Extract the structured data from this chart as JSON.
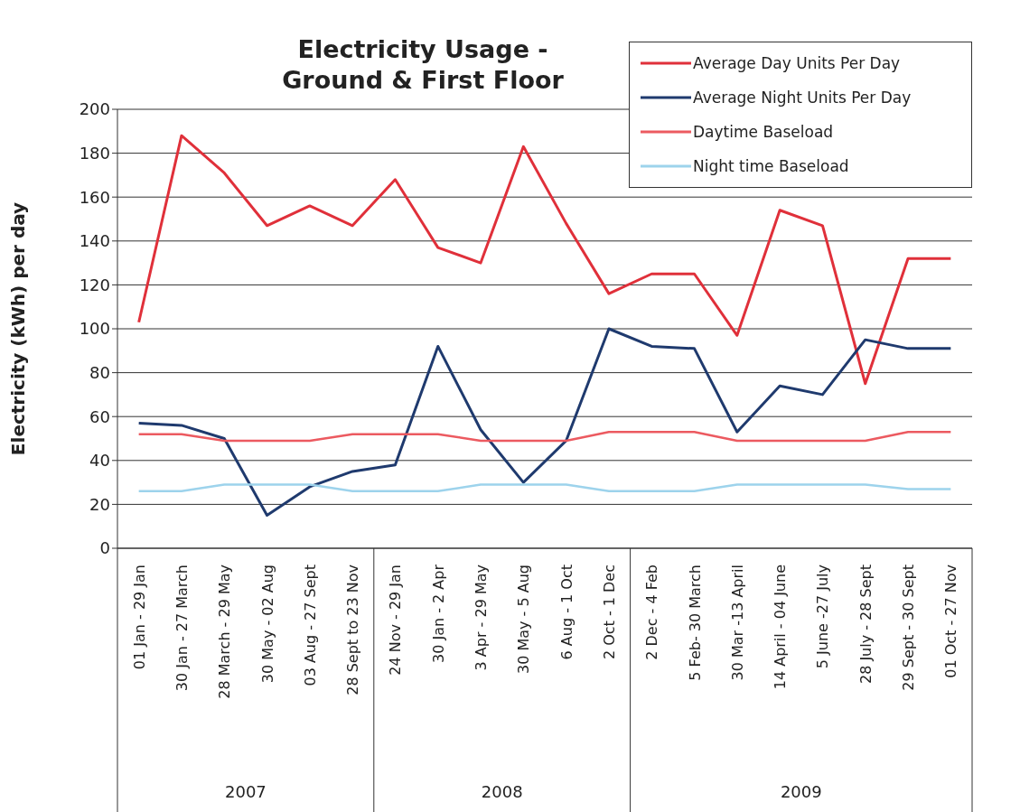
{
  "chart_data": {
    "type": "line",
    "title": "Electricity Usage - Ground & First Floor",
    "ylabel": "Electricity (kWh) per day",
    "categories": [
      "01 Jan - 29 Jan",
      "30 Jan - 27 March",
      "28 March - 29 May",
      "30 May - 02 Aug",
      "03 Aug - 27 Sept",
      "28 Sept to 23 Nov",
      "24 Nov - 29 Jan",
      "30 Jan - 2 Apr",
      "3 Apr - 29 May",
      "30 May - 5 Aug",
      "6 Aug - 1 Oct",
      "2 Oct - 1 Dec",
      "2 Dec - 4 Feb",
      "5 Feb- 30 March",
      "30 Mar -13 April",
      "14 April - 04 June",
      "5 June -27 July",
      "28 July - 28 Sept",
      "29 Sept - 30 Sept",
      "01 Oct - 27 Nov"
    ],
    "series": [
      {
        "name": "Average Day Units Per Day",
        "color": "#e0303a",
        "values": [
          103,
          188,
          171,
          147,
          156,
          147,
          168,
          137,
          130,
          183,
          148,
          116,
          125,
          125,
          97,
          154,
          147,
          75,
          132,
          132
        ]
      },
      {
        "name": "Average Night Units Per Day",
        "color": "#1f3a6e",
        "values": [
          57,
          56,
          50,
          15,
          28,
          35,
          38,
          92,
          54,
          30,
          49,
          100,
          92,
          91,
          53,
          74,
          70,
          95,
          91,
          91
        ]
      },
      {
        "name": "Daytime Baseload",
        "color": "#ec5a60",
        "values": [
          52,
          52,
          49,
          49,
          49,
          52,
          52,
          52,
          49,
          49,
          49,
          53,
          53,
          53,
          49,
          49,
          49,
          49,
          53,
          53
        ]
      },
      {
        "name": "Night time Baseload",
        "color": "#9dd3ec",
        "values": [
          26,
          26,
          29,
          29,
          29,
          26,
          26,
          26,
          29,
          29,
          29,
          26,
          26,
          26,
          29,
          29,
          29,
          29,
          27,
          27
        ]
      }
    ],
    "annotations": [
      "2007",
      "2008",
      "2009"
    ],
    "ylim": [
      0,
      200
    ],
    "yticks": [
      0,
      20,
      40,
      60,
      80,
      100,
      120,
      140,
      160,
      180,
      200
    ],
    "grid": "y",
    "legend": "top right",
    "marker": "none",
    "line_style": "solid"
  }
}
